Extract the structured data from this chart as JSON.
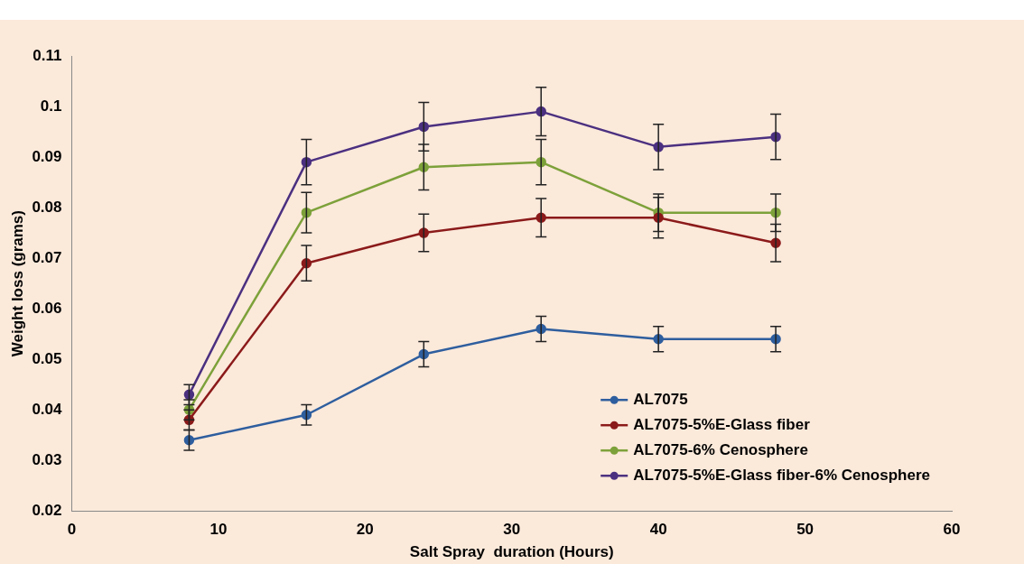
{
  "chart_data": {
    "type": "line",
    "xlabel": "Salt Spray  duration (Hours)",
    "ylabel": "Weight loss (grams)",
    "x": [
      8,
      16,
      24,
      32,
      40,
      48
    ],
    "series": [
      {
        "name": "AL7075",
        "color": "#2e5e9e",
        "values": [
          0.034,
          0.039,
          0.051,
          0.056,
          0.054,
          0.054
        ],
        "errors": [
          0.002,
          0.002,
          0.0025,
          0.0025,
          0.0025,
          0.0025
        ]
      },
      {
        "name": "AL7075-5%E-Glass fiber",
        "color": "#8b1a1a",
        "values": [
          0.038,
          0.069,
          0.075,
          0.078,
          0.078,
          0.073
        ],
        "errors": [
          0.002,
          0.0035,
          0.0037,
          0.0038,
          0.004,
          0.0037
        ]
      },
      {
        "name": "AL7075-6% Cenosphere",
        "color": "#7da13a",
        "values": [
          0.04,
          0.079,
          0.088,
          0.089,
          0.079,
          0.079
        ],
        "errors": [
          0.002,
          0.004,
          0.0045,
          0.0045,
          0.0037,
          0.0037
        ]
      },
      {
        "name": "AL7075-5%E-Glass fiber-6% Cenosphere",
        "color": "#4b3080",
        "values": [
          0.043,
          0.089,
          0.096,
          0.099,
          0.092,
          0.094
        ],
        "errors": [
          0.002,
          0.0045,
          0.0048,
          0.0048,
          0.0045,
          0.0045
        ]
      }
    ],
    "xlim": [
      0,
      60
    ],
    "xticks": [
      0,
      10,
      20,
      30,
      40,
      50,
      60
    ],
    "ylim": [
      0.02,
      0.11
    ],
    "yticks": [
      0.02,
      0.03,
      0.04,
      0.05,
      0.06,
      0.07,
      0.08,
      0.09,
      0.1,
      0.11
    ],
    "grid": false,
    "legend": "bottom right",
    "marker": "circle",
    "line_style": "solid"
  }
}
